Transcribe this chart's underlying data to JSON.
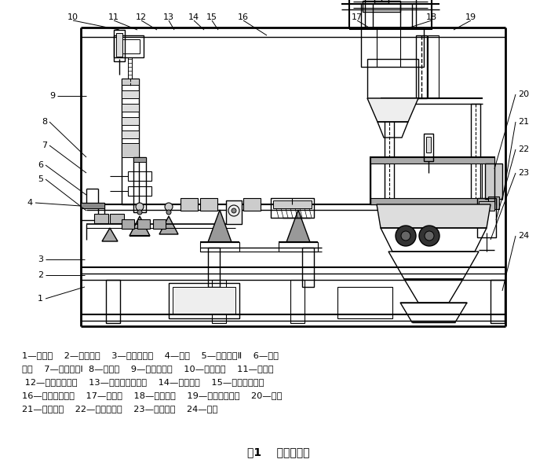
{
  "title": "图1    计量机结构",
  "bg_color": "#ffffff",
  "line_color": "#000000",
  "fig_width": 7.11,
  "fig_height": 6.03,
  "caption_lines": [
    "1—砂码盒    2—副杆支点    3—副杆限位板    4—副杆    5—接近开关Ⅱ    6—副杆",
    "游砂    7—接近开关Ⅰ  8—主秤杆    9—主杆限位架    10—压杆气缸    11—电磁阀",
    " 12—悬量修正游砂    13—电磁振动给料机    14—主杆支承    15—称量设置游砂",
    "16—料斗升降机构    17—进料斗    18—活动料斗    19—给料活门气缸    20—秤斗",
    "21—秤斗配重    22—卸料门气缸    23—卸料活门    24—机架"
  ]
}
